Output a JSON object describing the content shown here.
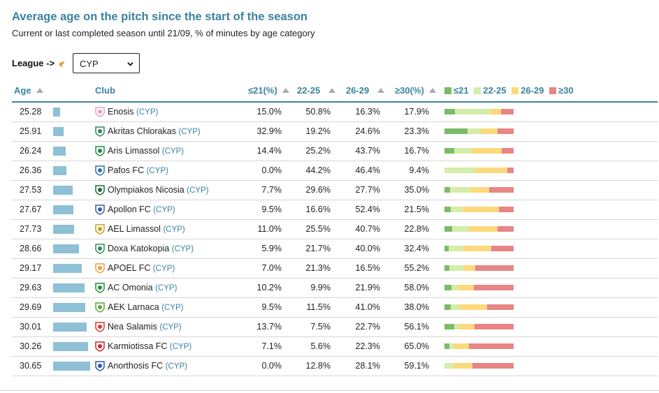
{
  "title": "Average age on the pitch since the start of the season",
  "subtitle": "Current or last completed season until 21/09, % of minutes by age category",
  "league": {
    "label": "League ->",
    "selected": "CYP",
    "flag_icon": "cyprus-flag-icon"
  },
  "columns": {
    "age": "Age",
    "club": "Club",
    "u21": "≤21(%)",
    "a22": "22-25",
    "a26": "26-29",
    "o30": "≥30(%)"
  },
  "legend": [
    {
      "label": "≤21",
      "color": "#7cbb6b"
    },
    {
      "label": "22-25",
      "color": "#d4eda8"
    },
    {
      "label": "26-29",
      "color": "#fcd97b"
    },
    {
      "label": "≥30",
      "color": "#e88585"
    }
  ],
  "colors": {
    "accent": "#3b82a0",
    "age_bar": "#8fc0d6"
  },
  "age_bar_scale": {
    "min_age": 25,
    "max_age": 31
  },
  "rows": [
    {
      "age": "25.28",
      "club": "Enosis",
      "league": "(CYP)",
      "u21": "15.0%",
      "a22": "50.8%",
      "a26": "16.3%",
      "o30": "17.9%",
      "crest": "#e8a0c0"
    },
    {
      "age": "25.91",
      "club": "Akritas Chlorakas",
      "league": "(CYP)",
      "u21": "32.9%",
      "a22": "19.2%",
      "a26": "24.6%",
      "o30": "23.3%",
      "crest": "#2e8b57"
    },
    {
      "age": "26.24",
      "club": "Aris Limassol",
      "league": "(CYP)",
      "u21": "14.4%",
      "a22": "25.2%",
      "a26": "43.7%",
      "o30": "16.7%",
      "crest": "#1e8a4a"
    },
    {
      "age": "26.36",
      "club": "Pafos FC",
      "league": "(CYP)",
      "u21": "0.0%",
      "a22": "44.2%",
      "a26": "46.4%",
      "o30": "9.4%",
      "crest": "#2c6fb3"
    },
    {
      "age": "27.53",
      "club": "Olympiakos Nicosia",
      "league": "(CYP)",
      "u21": "7.7%",
      "a22": "29.6%",
      "a26": "27.7%",
      "o30": "35.0%",
      "crest": "#1f6b2f"
    },
    {
      "age": "27.67",
      "club": "Apollon FC",
      "league": "(CYP)",
      "u21": "9.5%",
      "a22": "16.6%",
      "a26": "52.4%",
      "o30": "21.5%",
      "crest": "#3b5aa8"
    },
    {
      "age": "27.73",
      "club": "AEL Limassol",
      "league": "(CYP)",
      "u21": "11.0%",
      "a22": "25.5%",
      "a26": "40.7%",
      "o30": "22.8%",
      "crest": "#c8a020"
    },
    {
      "age": "28.66",
      "club": "Doxa Katokopia",
      "league": "(CYP)",
      "u21": "5.9%",
      "a22": "21.7%",
      "a26": "40.0%",
      "o30": "32.4%",
      "crest": "#2e8b57"
    },
    {
      "age": "29.17",
      "club": "APOEL FC",
      "league": "(CYP)",
      "u21": "7.0%",
      "a22": "21.3%",
      "a26": "16.5%",
      "o30": "55.2%",
      "crest": "#e8a23c"
    },
    {
      "age": "29.63",
      "club": "AC Omonia",
      "league": "(CYP)",
      "u21": "10.2%",
      "a22": "9.9%",
      "a26": "21.9%",
      "o30": "58.0%",
      "crest": "#1f8a3a"
    },
    {
      "age": "29.69",
      "club": "AEK Larnaca",
      "league": "(CYP)",
      "u21": "9.5%",
      "a22": "11.5%",
      "a26": "41.0%",
      "o30": "38.0%",
      "crest": "#5aa83c"
    },
    {
      "age": "30.01",
      "club": "Nea Salamis",
      "league": "(CYP)",
      "u21": "13.7%",
      "a22": "7.5%",
      "a26": "22.7%",
      "o30": "56.1%",
      "crest": "#d93838"
    },
    {
      "age": "30.26",
      "club": "Karmiotissa FC",
      "league": "(CYP)",
      "u21": "7.1%",
      "a22": "5.6%",
      "a26": "22.3%",
      "o30": "65.0%",
      "crest": "#c82828"
    },
    {
      "age": "30.65",
      "club": "Anorthosis FC",
      "league": "(CYP)",
      "u21": "0.0%",
      "a22": "12.8%",
      "a26": "28.1%",
      "o30": "59.1%",
      "crest": "#2a5aa8"
    }
  ]
}
